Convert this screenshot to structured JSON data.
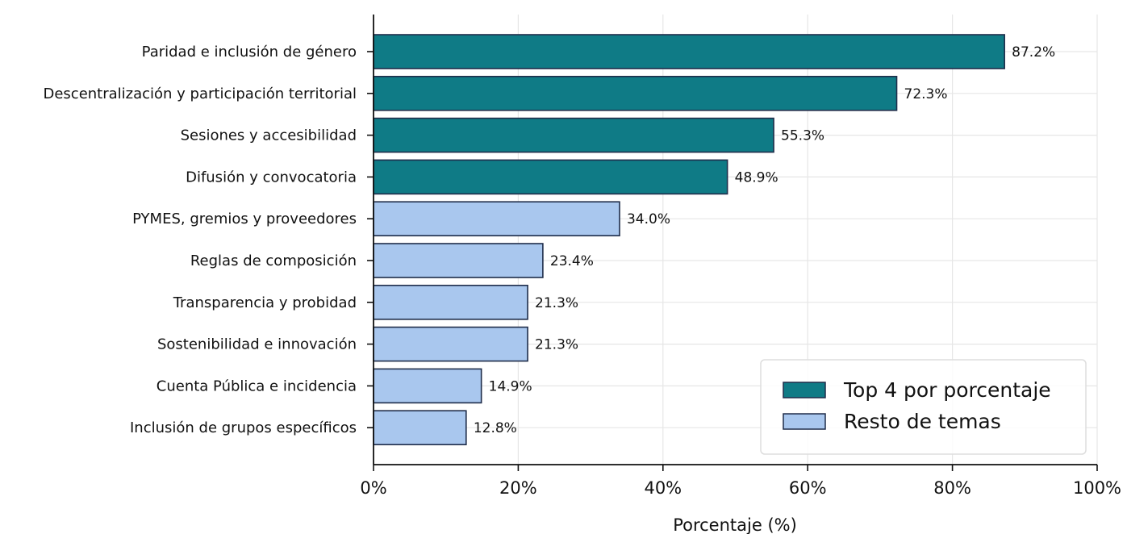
{
  "chart_data": {
    "type": "bar",
    "orientation": "horizontal",
    "categories": [
      "Paridad e inclusión de género",
      "Descentralización y participación territorial",
      "Sesiones y accesibilidad",
      "Difusión y convocatoria",
      "PYMES, gremios y proveedores",
      "Reglas de composición",
      "Transparencia y probidad",
      "Sostenibilidad e innovación",
      "Cuenta Pública e incidencia",
      "Inclusión de grupos específicos"
    ],
    "values": [
      87.2,
      72.3,
      55.3,
      48.9,
      34.0,
      23.4,
      21.3,
      21.3,
      14.9,
      12.8
    ],
    "value_labels": [
      "87.2%",
      "72.3%",
      "55.3%",
      "48.9%",
      "34.0%",
      "23.4%",
      "21.3%",
      "21.3%",
      "14.9%",
      "12.8%"
    ],
    "groups": [
      "top",
      "top",
      "top",
      "top",
      "rest",
      "rest",
      "rest",
      "rest",
      "rest",
      "rest"
    ],
    "xlabel": "Porcentaje (%)",
    "ylabel": "",
    "xlim": [
      0,
      100
    ],
    "xticks": [
      0,
      20,
      40,
      60,
      80,
      100
    ],
    "xtick_labels": [
      "0%",
      "20%",
      "40%",
      "60%",
      "80%",
      "100%"
    ],
    "grid": true,
    "legend": {
      "position": "lower-right",
      "entries": [
        {
          "label": "Top 4 por porcentaje",
          "color": "#0f7b86"
        },
        {
          "label": "Resto de temas",
          "color": "#a9c7ee"
        }
      ]
    },
    "colors": {
      "top": "#0f7b86",
      "rest": "#a9c7ee",
      "edge": "#1f2d4a",
      "grid": "#e6e6e6"
    }
  }
}
